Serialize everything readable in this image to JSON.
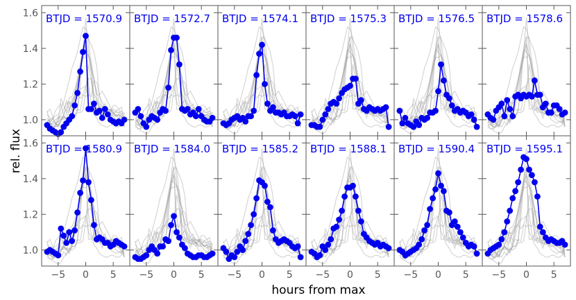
{
  "chart_data": {
    "type": "line",
    "xlabel": "hours from max",
    "ylabel": "rel. flux",
    "xlim": [
      -8,
      8
    ],
    "ylim": [
      0.91,
      1.64
    ],
    "xticks": [
      -5,
      0,
      5
    ],
    "yticks": [
      1.0,
      1.2,
      1.4,
      1.6
    ],
    "xtick_labels": [
      "−5",
      "0",
      "5"
    ],
    "ytick_labels": [
      "1.0",
      "1.2",
      "1.4",
      "1.6"
    ],
    "colors": {
      "highlight": "#0000ee",
      "background_curves": "#999999",
      "axes": "#555555"
    },
    "shared_x": [
      -7,
      -6.5,
      -6,
      -5.5,
      -5,
      -4.5,
      -4,
      -3.5,
      -3,
      -2.5,
      -2,
      -1.5,
      -1,
      -0.5,
      0,
      0.5,
      1,
      1.5,
      2,
      2.5,
      3,
      3.5,
      4,
      4.5,
      5,
      5.5,
      6,
      6.5,
      7
    ],
    "panels": [
      {
        "title": "BTJD = 1570.9",
        "y": [
          0.97,
          0.95,
          0.94,
          0.93,
          0.92,
          0.93,
          0.96,
          0.98,
          1.0,
          1.02,
          1.08,
          1.15,
          1.27,
          1.38,
          1.47,
          1.06,
          1.06,
          1.09,
          1.04,
          1.05,
          1.01,
          1.06,
          1.03,
          1.0,
          0.99,
          0.98,
          0.99,
          0.98,
          1.0
        ]
      },
      {
        "title": "BTJD = 1572.7",
        "y": [
          1.04,
          1.06,
          1.02,
          0.98,
          0.96,
          1.0,
          1.02,
          1.01,
          1.0,
          1.04,
          1.06,
          1.05,
          1.18,
          1.39,
          1.46,
          1.46,
          1.31,
          1.06,
          1.05,
          1.06,
          1.03,
          1.04,
          1.02,
          1.06,
          1.02,
          1.0,
          0.99,
          0.99,
          1.01
        ]
      },
      {
        "title": "BTJD = 1574.1",
        "y": [
          0.98,
          0.97,
          0.98,
          1.0,
          1.01,
          1.02,
          1.0,
          1.01,
          0.99,
          1.02,
          1.02,
          1.05,
          1.25,
          1.37,
          1.42,
          1.2,
          1.09,
          1.05,
          1.07,
          1.04,
          1.04,
          1.03,
          1.04,
          1.02,
          1.02,
          1.03,
          1.02,
          0.98,
          1.03
        ]
      },
      {
        "title": "BTJD = 1575.3",
        "y": [
          0.97,
          0.97,
          0.96,
          0.96,
          1.0,
          1.03,
          1.06,
          1.09,
          1.1,
          1.09,
          1.12,
          1.15,
          1.17,
          1.18,
          1.19,
          1.23,
          1.23,
          1.09,
          1.11,
          1.06,
          1.05,
          1.07,
          1.06,
          1.05,
          1.06,
          1.05,
          1.06,
          1.07,
          0.96
        ]
      },
      {
        "title": "BTJD = 1576.5",
        "y": [
          1.05,
          0.98,
          1.01,
          0.98,
          0.97,
          0.96,
          0.99,
          0.97,
          1.01,
          1.0,
          1.01,
          1.04,
          1.04,
          1.05,
          1.16,
          1.31,
          1.22,
          1.14,
          1.12,
          1.08,
          1.05,
          1.06,
          1.04,
          1.05,
          1.04,
          1.02,
          1.03,
          1.0,
          0.96
        ]
      },
      {
        "title": "BTJD = 1578.6",
        "y": [
          1.03,
          1.01,
          1.0,
          1.05,
          1.07,
          1.09,
          1.02,
          1.11,
          1.06,
          1.02,
          1.13,
          1.14,
          1.12,
          1.14,
          1.13,
          1.14,
          1.13,
          1.22,
          1.14,
          1.14,
          1.07,
          1.09,
          1.04,
          1.04,
          1.08,
          1.08,
          1.06,
          1.03,
          1.04
        ]
      },
      {
        "title": "BTJD = 1580.9",
        "y": [
          0.99,
          1.0,
          0.99,
          0.98,
          0.97,
          1.12,
          1.08,
          1.04,
          1.1,
          1.05,
          1.11,
          1.21,
          1.32,
          1.39,
          1.57,
          1.38,
          1.28,
          1.14,
          1.06,
          1.07,
          1.06,
          1.04,
          1.04,
          1.02,
          1.03,
          1.05,
          1.04,
          1.03,
          1.02
        ]
      },
      {
        "title": "BTJD = 1584.0",
        "y": [
          0.96,
          0.95,
          0.95,
          0.96,
          0.97,
          1.0,
          1.02,
          1.0,
          0.98,
          1.02,
          1.02,
          1.06,
          1.05,
          1.14,
          1.19,
          1.1,
          1.07,
          1.03,
          1.01,
          0.98,
          0.97,
          0.96,
          0.96,
          0.97,
          0.97,
          0.96,
          0.96,
          0.97,
          0.98
        ]
      },
      {
        "title": "BTJD = 1585.2",
        "y": [
          1.01,
          0.99,
          0.95,
          0.97,
          0.96,
          0.99,
          1.02,
          1.0,
          1.05,
          1.09,
          1.14,
          1.2,
          1.29,
          1.39,
          1.38,
          1.36,
          1.27,
          1.24,
          1.11,
          1.06,
          1.04,
          1.05,
          1.06,
          1.05,
          1.04,
          1.02,
          1.01,
          1.02,
          0.96
        ]
      },
      {
        "title": "BTJD = 1588.1",
        "y": [
          0.99,
          0.98,
          0.96,
          0.97,
          1.02,
          1.0,
          1.03,
          1.06,
          1.12,
          1.13,
          1.17,
          1.22,
          1.3,
          1.35,
          1.35,
          1.36,
          1.3,
          1.22,
          1.16,
          1.09,
          1.07,
          1.05,
          1.04,
          1.03,
          1.04,
          1.02,
          1.03,
          1.02,
          1.01
        ]
      },
      {
        "title": "BTJD = 1590.4",
        "y": [
          1.0,
          0.99,
          0.97,
          0.98,
          0.99,
          1.0,
          1.01,
          1.03,
          1.06,
          1.11,
          1.14,
          1.23,
          1.29,
          1.34,
          1.43,
          1.36,
          1.33,
          1.22,
          1.21,
          1.14,
          1.16,
          1.13,
          1.1,
          1.07,
          1.04,
          1.02,
          1.03,
          1.02,
          0.98
        ]
      },
      {
        "title": "BTJD = 1595.1",
        "y": [
          0.98,
          1.0,
          1.01,
          1.02,
          1.03,
          1.06,
          1.1,
          1.16,
          1.22,
          1.29,
          1.33,
          1.38,
          1.45,
          1.52,
          1.51,
          1.45,
          1.42,
          1.38,
          1.3,
          1.13,
          1.1,
          1.07,
          1.05,
          1.06,
          1.05,
          1.04,
          1.04,
          1.05,
          1.03
        ]
      }
    ]
  }
}
